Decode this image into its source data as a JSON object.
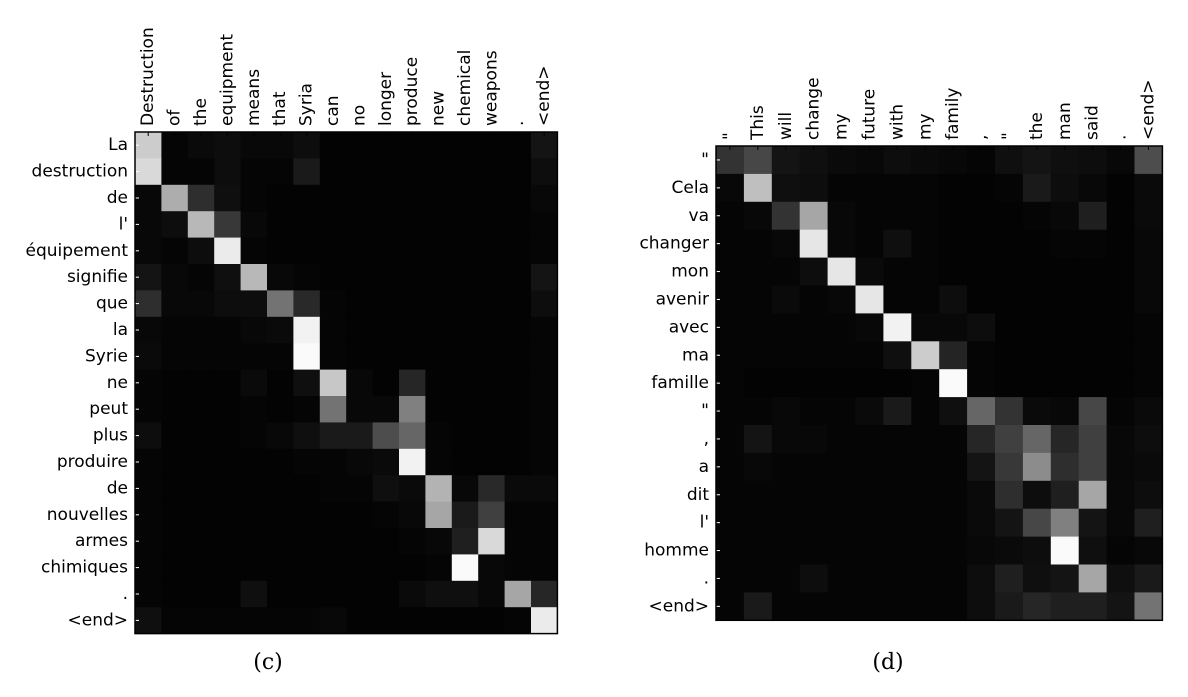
{
  "chart_data": [
    {
      "type": "heatmap",
      "caption": "(c)",
      "x_labels": [
        "Destruction",
        "of",
        "the",
        "equipment",
        "means",
        "that",
        "Syria",
        "can",
        "no",
        "longer",
        "produce",
        "new",
        "chemical",
        "weapons",
        ".",
        "<end>"
      ],
      "y_labels": [
        "La",
        "destruction",
        "de",
        "l'",
        "équipement",
        "signifie",
        "que",
        "la",
        "Syrie",
        "ne",
        "peut",
        "plus",
        "produire",
        "de",
        "nouvelles",
        "armes",
        "chimiques",
        ".",
        "<end>"
      ],
      "value_range": [
        0,
        1
      ],
      "colormap": "grayscale",
      "values": [
        [
          0.8,
          0.02,
          0.04,
          0.05,
          0.03,
          0.03,
          0.05,
          0.01,
          0.01,
          0.01,
          0.01,
          0.01,
          0.01,
          0.01,
          0.01,
          0.08
        ],
        [
          0.85,
          0.02,
          0.02,
          0.05,
          0.02,
          0.02,
          0.1,
          0.01,
          0.01,
          0.01,
          0.01,
          0.01,
          0.01,
          0.01,
          0.01,
          0.05
        ],
        [
          0.03,
          0.68,
          0.18,
          0.06,
          0.02,
          0.01,
          0.01,
          0.01,
          0.01,
          0.01,
          0.01,
          0.01,
          0.01,
          0.01,
          0.01,
          0.03
        ],
        [
          0.03,
          0.05,
          0.72,
          0.22,
          0.03,
          0.01,
          0.01,
          0.01,
          0.01,
          0.01,
          0.01,
          0.01,
          0.01,
          0.01,
          0.01,
          0.02
        ],
        [
          0.03,
          0.02,
          0.05,
          0.92,
          0.02,
          0.01,
          0.01,
          0.01,
          0.01,
          0.01,
          0.01,
          0.01,
          0.01,
          0.01,
          0.01,
          0.02
        ],
        [
          0.08,
          0.03,
          0.02,
          0.06,
          0.72,
          0.03,
          0.02,
          0.01,
          0.01,
          0.01,
          0.01,
          0.01,
          0.01,
          0.01,
          0.01,
          0.08
        ],
        [
          0.18,
          0.03,
          0.03,
          0.05,
          0.05,
          0.45,
          0.16,
          0.02,
          0.01,
          0.01,
          0.01,
          0.01,
          0.01,
          0.01,
          0.01,
          0.05
        ],
        [
          0.03,
          0.02,
          0.02,
          0.02,
          0.03,
          0.04,
          0.95,
          0.02,
          0.01,
          0.01,
          0.01,
          0.01,
          0.01,
          0.01,
          0.01,
          0.02
        ],
        [
          0.04,
          0.02,
          0.02,
          0.02,
          0.02,
          0.02,
          0.98,
          0.02,
          0.01,
          0.01,
          0.01,
          0.01,
          0.01,
          0.01,
          0.01,
          0.02
        ],
        [
          0.02,
          0.01,
          0.01,
          0.01,
          0.04,
          0.01,
          0.06,
          0.78,
          0.03,
          0.01,
          0.15,
          0.01,
          0.01,
          0.01,
          0.01,
          0.02
        ],
        [
          0.02,
          0.01,
          0.01,
          0.01,
          0.02,
          0.01,
          0.02,
          0.45,
          0.03,
          0.03,
          0.5,
          0.01,
          0.01,
          0.01,
          0.01,
          0.02
        ],
        [
          0.05,
          0.01,
          0.01,
          0.01,
          0.02,
          0.03,
          0.06,
          0.1,
          0.1,
          0.3,
          0.4,
          0.02,
          0.01,
          0.01,
          0.01,
          0.02
        ],
        [
          0.02,
          0.01,
          0.01,
          0.01,
          0.01,
          0.01,
          0.02,
          0.02,
          0.03,
          0.04,
          0.95,
          0.02,
          0.01,
          0.01,
          0.01,
          0.02
        ],
        [
          0.02,
          0.01,
          0.01,
          0.01,
          0.01,
          0.01,
          0.01,
          0.02,
          0.02,
          0.06,
          0.04,
          0.7,
          0.03,
          0.16,
          0.04,
          0.04
        ],
        [
          0.02,
          0.01,
          0.01,
          0.01,
          0.01,
          0.01,
          0.01,
          0.01,
          0.01,
          0.02,
          0.03,
          0.65,
          0.1,
          0.25,
          0.02,
          0.02
        ],
        [
          0.02,
          0.01,
          0.01,
          0.01,
          0.01,
          0.01,
          0.01,
          0.01,
          0.01,
          0.01,
          0.02,
          0.03,
          0.12,
          0.85,
          0.02,
          0.02
        ],
        [
          0.02,
          0.01,
          0.01,
          0.01,
          0.01,
          0.01,
          0.01,
          0.01,
          0.01,
          0.01,
          0.01,
          0.02,
          0.98,
          0.03,
          0.02,
          0.02
        ],
        [
          0.02,
          0.01,
          0.01,
          0.01,
          0.06,
          0.01,
          0.01,
          0.01,
          0.01,
          0.01,
          0.04,
          0.06,
          0.06,
          0.03,
          0.65,
          0.15
        ],
        [
          0.06,
          0.02,
          0.02,
          0.02,
          0.02,
          0.02,
          0.02,
          0.03,
          0.01,
          0.01,
          0.01,
          0.01,
          0.01,
          0.01,
          0.02,
          0.92
        ]
      ]
    },
    {
      "type": "heatmap",
      "caption": "(d)",
      "x_labels": [
        "\"",
        "This",
        "will",
        "change",
        "my",
        "future",
        "with",
        "my",
        "family",
        ",",
        "\"",
        "the",
        "man",
        "said",
        ".",
        "<end>"
      ],
      "y_labels": [
        "\"",
        "Cela",
        "va",
        "changer",
        "mon",
        "avenir",
        "avec",
        "ma",
        "famille",
        "\"",
        ",",
        "a",
        "dit",
        "l'",
        "homme",
        ".",
        "<end>"
      ],
      "value_range": [
        0,
        1
      ],
      "colormap": "grayscale",
      "values": [
        [
          0.2,
          0.28,
          0.08,
          0.06,
          0.04,
          0.03,
          0.05,
          0.04,
          0.03,
          0.02,
          0.06,
          0.08,
          0.06,
          0.05,
          0.03,
          0.3
        ],
        [
          0.03,
          0.75,
          0.06,
          0.05,
          0.02,
          0.02,
          0.02,
          0.02,
          0.01,
          0.01,
          0.02,
          0.1,
          0.05,
          0.03,
          0.01,
          0.04
        ],
        [
          0.02,
          0.03,
          0.2,
          0.65,
          0.03,
          0.02,
          0.02,
          0.02,
          0.01,
          0.01,
          0.01,
          0.02,
          0.03,
          0.12,
          0.01,
          0.04
        ],
        [
          0.02,
          0.02,
          0.03,
          0.9,
          0.03,
          0.02,
          0.06,
          0.02,
          0.01,
          0.01,
          0.01,
          0.01,
          0.02,
          0.02,
          0.01,
          0.03
        ],
        [
          0.02,
          0.02,
          0.02,
          0.05,
          0.9,
          0.04,
          0.02,
          0.02,
          0.01,
          0.01,
          0.01,
          0.01,
          0.01,
          0.01,
          0.01,
          0.03
        ],
        [
          0.02,
          0.02,
          0.04,
          0.02,
          0.03,
          0.9,
          0.02,
          0.02,
          0.05,
          0.01,
          0.01,
          0.01,
          0.01,
          0.01,
          0.01,
          0.03
        ],
        [
          0.02,
          0.02,
          0.02,
          0.02,
          0.02,
          0.03,
          0.95,
          0.03,
          0.03,
          0.05,
          0.01,
          0.01,
          0.01,
          0.01,
          0.01,
          0.02
        ],
        [
          0.02,
          0.02,
          0.02,
          0.02,
          0.02,
          0.02,
          0.06,
          0.8,
          0.14,
          0.02,
          0.01,
          0.01,
          0.01,
          0.01,
          0.01,
          0.02
        ],
        [
          0.02,
          0.01,
          0.01,
          0.01,
          0.01,
          0.01,
          0.01,
          0.02,
          0.98,
          0.02,
          0.01,
          0.01,
          0.01,
          0.01,
          0.01,
          0.02
        ],
        [
          0.02,
          0.02,
          0.03,
          0.02,
          0.02,
          0.04,
          0.1,
          0.02,
          0.06,
          0.4,
          0.2,
          0.04,
          0.03,
          0.28,
          0.02,
          0.04
        ],
        [
          0.02,
          0.08,
          0.03,
          0.03,
          0.02,
          0.02,
          0.02,
          0.02,
          0.02,
          0.15,
          0.25,
          0.4,
          0.15,
          0.25,
          0.03,
          0.05
        ],
        [
          0.02,
          0.03,
          0.02,
          0.02,
          0.02,
          0.02,
          0.02,
          0.02,
          0.02,
          0.08,
          0.22,
          0.55,
          0.18,
          0.25,
          0.03,
          0.04
        ],
        [
          0.02,
          0.02,
          0.02,
          0.02,
          0.02,
          0.02,
          0.02,
          0.02,
          0.02,
          0.04,
          0.18,
          0.05,
          0.12,
          0.65,
          0.03,
          0.05
        ],
        [
          0.02,
          0.02,
          0.02,
          0.02,
          0.02,
          0.02,
          0.02,
          0.02,
          0.02,
          0.04,
          0.08,
          0.28,
          0.5,
          0.08,
          0.03,
          0.12
        ],
        [
          0.02,
          0.02,
          0.02,
          0.02,
          0.02,
          0.02,
          0.02,
          0.02,
          0.02,
          0.03,
          0.04,
          0.05,
          0.98,
          0.06,
          0.02,
          0.03
        ],
        [
          0.02,
          0.02,
          0.02,
          0.05,
          0.02,
          0.02,
          0.02,
          0.02,
          0.02,
          0.05,
          0.12,
          0.06,
          0.08,
          0.65,
          0.06,
          0.1
        ],
        [
          0.02,
          0.1,
          0.02,
          0.02,
          0.02,
          0.02,
          0.02,
          0.02,
          0.02,
          0.05,
          0.1,
          0.15,
          0.12,
          0.12,
          0.08,
          0.45
        ]
      ]
    }
  ]
}
